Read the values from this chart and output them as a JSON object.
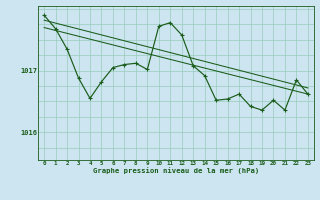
{
  "xlabel": "Graphe pression niveau de la mer (hPa)",
  "bg_color": "#cce5f0",
  "grid_color": "#99ccbb",
  "line_color": "#1a5c1a",
  "x_ticks": [
    0,
    1,
    2,
    3,
    4,
    5,
    6,
    7,
    8,
    9,
    10,
    11,
    12,
    13,
    14,
    15,
    16,
    17,
    18,
    19,
    20,
    21,
    22,
    23
  ],
  "y_ticks": [
    1016,
    1017
  ],
  "ylim": [
    1015.55,
    1018.05
  ],
  "xlim": [
    -0.5,
    23.5
  ],
  "series1_x": [
    0,
    1,
    2,
    3,
    4,
    5,
    6,
    7,
    8,
    9,
    10,
    11,
    12,
    13,
    14,
    15,
    16,
    17,
    18,
    19,
    20,
    21,
    22,
    23
  ],
  "series1_y": [
    1017.9,
    1017.68,
    1017.35,
    1016.88,
    1016.55,
    1016.82,
    1017.05,
    1017.1,
    1017.12,
    1017.02,
    1017.72,
    1017.78,
    1017.58,
    1017.08,
    1016.92,
    1016.52,
    1016.54,
    1016.62,
    1016.42,
    1016.36,
    1016.52,
    1016.36,
    1016.85,
    1016.62
  ],
  "trend1_x": [
    0,
    23
  ],
  "trend1_y": [
    1017.82,
    1016.72
  ],
  "trend2_x": [
    0,
    23
  ],
  "trend2_y": [
    1017.7,
    1016.62
  ],
  "figwidth": 3.2,
  "figheight": 2.0,
  "dpi": 100
}
